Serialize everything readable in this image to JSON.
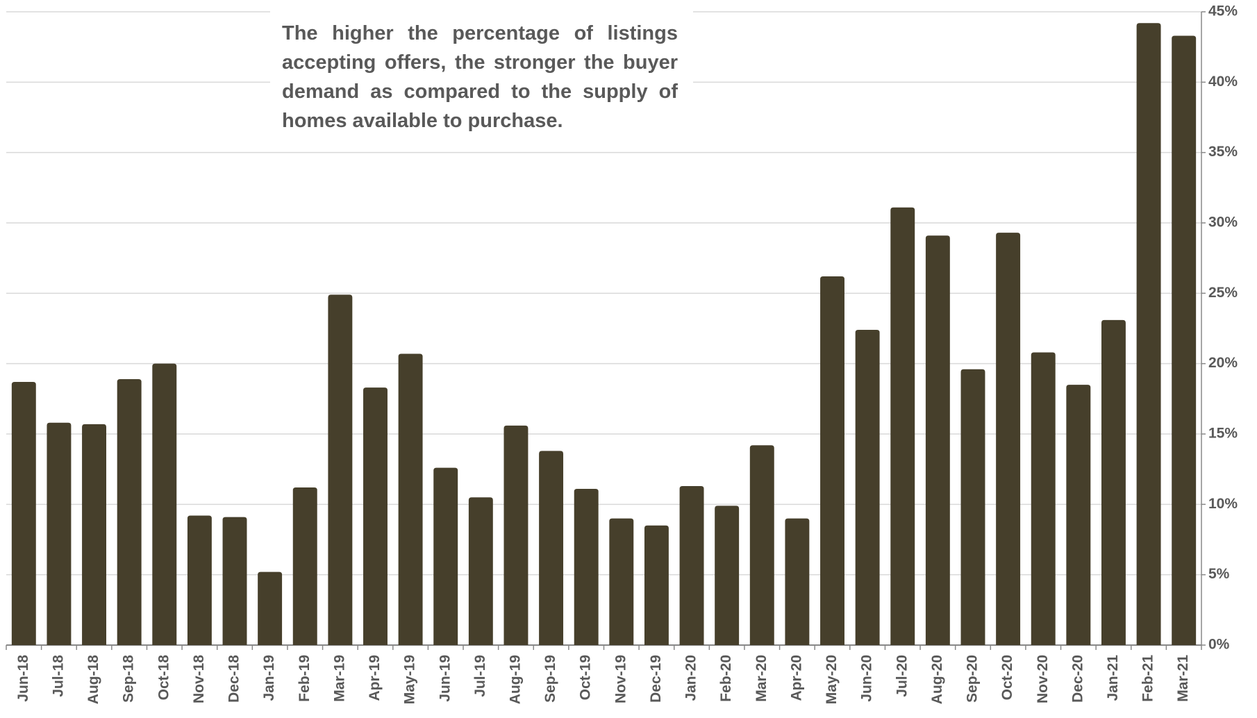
{
  "chart_data": {
    "type": "bar",
    "annotation": "The higher the percentage of listings accepting offers, the stronger the buyer demand as compared to the supply of homes available to purchase.",
    "categories": [
      "Jun-18",
      "Jul-18",
      "Aug-18",
      "Sep-18",
      "Oct-18",
      "Nov-18",
      "Dec-18",
      "Jan-19",
      "Feb-19",
      "Mar-19",
      "Apr-19",
      "May-19",
      "Jun-19",
      "Jul-19",
      "Aug-19",
      "Sep-19",
      "Oct-19",
      "Nov-19",
      "Dec-19",
      "Jan-20",
      "Feb-20",
      "Mar-20",
      "Apr-20",
      "May-20",
      "Jun-20",
      "Jul-20",
      "Aug-20",
      "Sep-20",
      "Oct-20",
      "Nov-20",
      "Dec-20",
      "Jan-21",
      "Feb-21",
      "Mar-21"
    ],
    "values": [
      18.7,
      15.8,
      15.7,
      18.9,
      20.0,
      9.2,
      9.1,
      5.2,
      11.2,
      24.9,
      18.3,
      20.7,
      12.6,
      10.5,
      15.6,
      13.8,
      11.1,
      9.0,
      8.5,
      11.3,
      9.9,
      14.2,
      9.0,
      26.2,
      22.4,
      31.1,
      29.1,
      19.6,
      29.3,
      20.8,
      18.5,
      23.1,
      44.2,
      43.3
    ],
    "color": "#463f2b",
    "ylim": [
      0,
      45
    ],
    "yticks": [
      {
        "value": 0,
        "label": "0%"
      },
      {
        "value": 5,
        "label": "5%"
      },
      {
        "value": 10,
        "label": "10%"
      },
      {
        "value": 15,
        "label": "15%"
      },
      {
        "value": 20,
        "label": "20%"
      },
      {
        "value": 25,
        "label": "25%"
      },
      {
        "value": 30,
        "label": "30%"
      },
      {
        "value": 35,
        "label": "35%"
      },
      {
        "value": 40,
        "label": "40%"
      },
      {
        "value": 45,
        "label": "45%"
      }
    ],
    "grid": true
  }
}
